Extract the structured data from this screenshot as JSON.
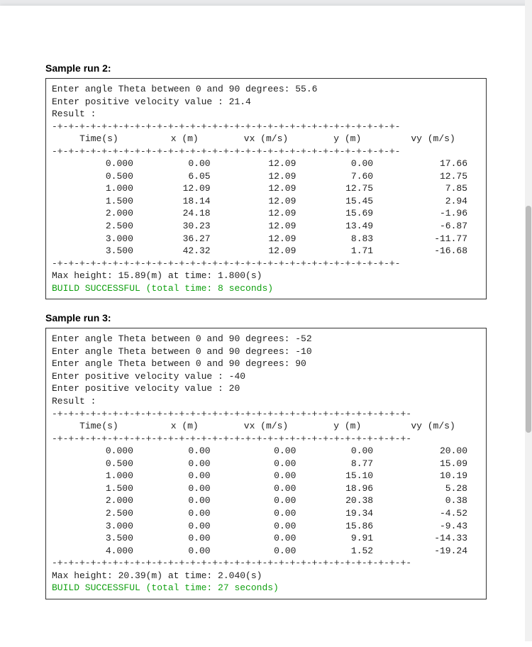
{
  "run2": {
    "title": "Sample run 2:",
    "prompt_lines": [
      "Enter angle Theta between 0 and 90 degrees: 55.6",
      "Enter positive velocity value : 21.4",
      "Result :"
    ],
    "separator": "-+-+-+-+-+-+-+-+-+-+-+-+-+-+-+-+-+-+-+-+-+-+-+-+-+-+-+-+-+-+-+-",
    "headers": [
      "Time(s)",
      "x (m)",
      "vx (m/s)",
      "y (m)",
      "vy (m/s)"
    ],
    "rows": [
      [
        "0.000",
        "0.00",
        "12.09",
        "0.00",
        "17.66"
      ],
      [
        "0.500",
        "6.05",
        "12.09",
        "7.60",
        "12.75"
      ],
      [
        "1.000",
        "12.09",
        "12.09",
        "12.75",
        "7.85"
      ],
      [
        "1.500",
        "18.14",
        "12.09",
        "15.45",
        "2.94"
      ],
      [
        "2.000",
        "24.18",
        "12.09",
        "15.69",
        "-1.96"
      ],
      [
        "2.500",
        "30.23",
        "12.09",
        "13.49",
        "-6.87"
      ],
      [
        "3.000",
        "36.27",
        "12.09",
        "8.83",
        "-11.77"
      ],
      [
        "3.500",
        "42.32",
        "12.09",
        "1.71",
        "-16.68"
      ]
    ],
    "max_line": "Max height: 15.89(m) at time: 1.800(s)",
    "build_line": "BUILD SUCCESSFUL (total time: 8 seconds)"
  },
  "run3": {
    "title": "Sample run 3:",
    "prompt_lines": [
      "Enter angle Theta between 0 and 90 degrees: -52",
      "Enter angle Theta between 0 and 90 degrees: -10",
      "Enter angle Theta between 0 and 90 degrees: 90",
      "Enter positive velocity value : -40",
      "Enter positive velocity value : 20",
      "Result :"
    ],
    "separator": "-+-+-+-+-+-+-+-+-+-+-+-+-+-+-+-+-+-+-+-+-+-+-+-+-+-+-+-+-+-+-+-+-",
    "headers": [
      "Time(s)",
      "x (m)",
      "vx (m/s)",
      "y (m)",
      "vy (m/s)"
    ],
    "rows": [
      [
        "0.000",
        "0.00",
        "0.00",
        "0.00",
        "20.00"
      ],
      [
        "0.500",
        "0.00",
        "0.00",
        "8.77",
        "15.09"
      ],
      [
        "1.000",
        "0.00",
        "0.00",
        "15.10",
        "10.19"
      ],
      [
        "1.500",
        "0.00",
        "0.00",
        "18.96",
        "5.28"
      ],
      [
        "2.000",
        "0.00",
        "0.00",
        "20.38",
        "0.38"
      ],
      [
        "2.500",
        "0.00",
        "0.00",
        "19.34",
        "-4.52"
      ],
      [
        "3.000",
        "0.00",
        "0.00",
        "15.86",
        "-9.43"
      ],
      [
        "3.500",
        "0.00",
        "0.00",
        "9.91",
        "-14.33"
      ],
      [
        "4.000",
        "0.00",
        "0.00",
        "1.52",
        "-19.24"
      ]
    ],
    "max_line": "Max height: 20.39(m) at time: 2.040(s)",
    "build_line": "BUILD SUCCESSFUL (total time: 27 seconds)"
  },
  "col_widths_pct": [
    22,
    18,
    20,
    18,
    22
  ]
}
